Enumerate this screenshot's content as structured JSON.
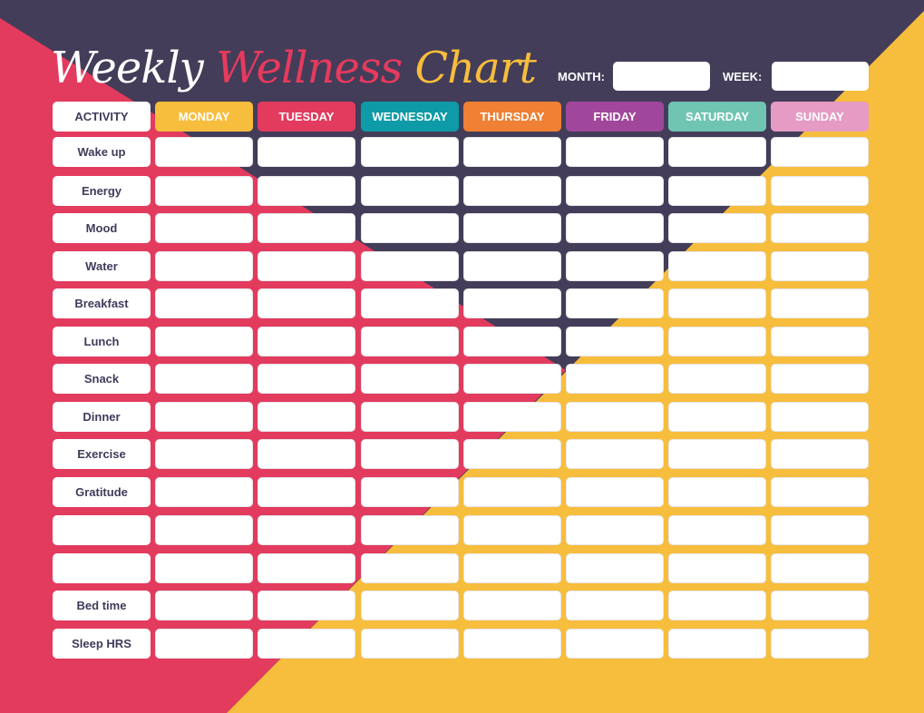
{
  "title": {
    "word1": "Weekly",
    "word2": "Wellness",
    "word3": "Chart"
  },
  "header": {
    "month_label": "MONTH:",
    "week_label": "WEEK:",
    "month_value": "",
    "week_value": ""
  },
  "table": {
    "activity_header": "ACTIVITY",
    "days": [
      {
        "label": "MONDAY",
        "color": "#f7bd3c"
      },
      {
        "label": "TUESDAY",
        "color": "#e23b5e"
      },
      {
        "label": "WEDNESDAY",
        "color": "#0e9aa7"
      },
      {
        "label": "THURSDAY",
        "color": "#ef8034"
      },
      {
        "label": "FRIDAY",
        "color": "#a0479b"
      },
      {
        "label": "SATURDAY",
        "color": "#6fc5b2"
      },
      {
        "label": "SUNDAY",
        "color": "#e59bc3"
      }
    ],
    "activities": [
      "Wake up",
      "Energy",
      "Mood",
      "Water",
      "Breakfast",
      "Lunch",
      "Snack",
      "Dinner",
      "Exercise",
      "Gratitude",
      "",
      "",
      "Bed time",
      "Sleep HRS"
    ]
  },
  "colors": {
    "navy": "#433d59",
    "pink": "#e23b5e",
    "yellow": "#f7bd3c",
    "text_dark": "#3f3b5a"
  }
}
